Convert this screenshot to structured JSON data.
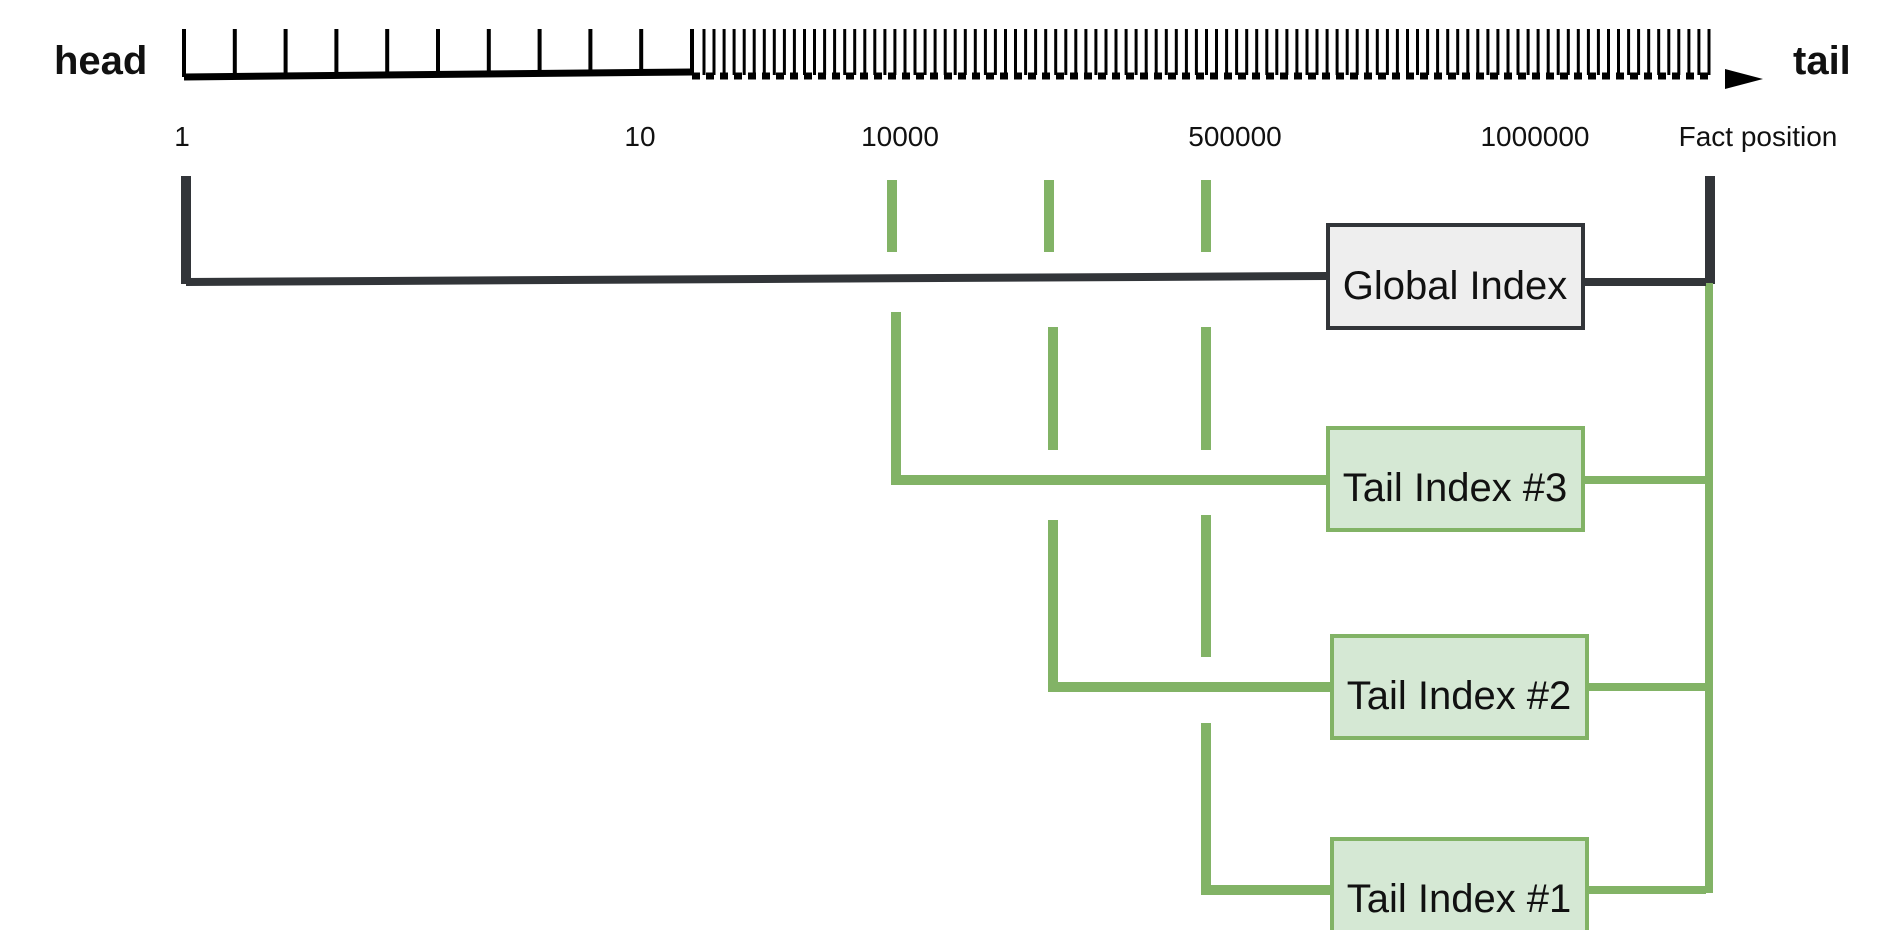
{
  "timeline": {
    "head_label": "head",
    "tail_label": "tail",
    "axis_label": "Fact position",
    "tick_labels": [
      "1",
      "10",
      "10000",
      "500000",
      "1000000"
    ]
  },
  "indexes": {
    "global": {
      "label": "Global Index"
    },
    "tail3": {
      "label": "Tail Index #3"
    },
    "tail2": {
      "label": "Tail Index #2"
    },
    "tail1": {
      "label": "Tail Index #1"
    }
  },
  "colors": {
    "dark": "#323539",
    "green": "#82b366",
    "green_fill": "#d5e8d4",
    "grey_fill": "#eeeeee",
    "black": "#000000"
  }
}
